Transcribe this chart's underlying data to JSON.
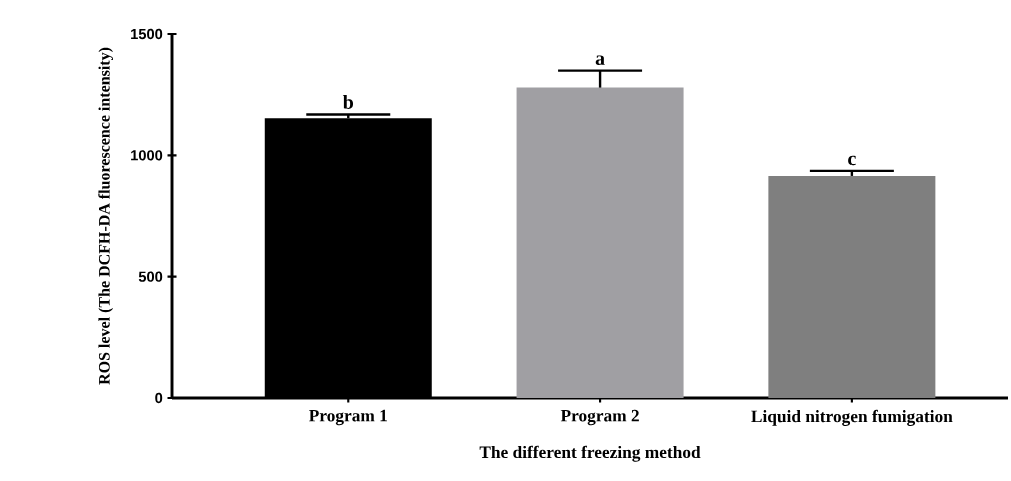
{
  "chart_data": {
    "type": "bar",
    "xlabel": "The different freezing method",
    "ylabel": "ROS level (The DCFH-DA fluorescence intensity)",
    "categories": [
      "Program 1",
      "Program 2",
      "Liquid nitrogen fumigation"
    ],
    "values": [
      1153,
      1279,
      915
    ],
    "errors": [
      [
        1153,
        1168
      ],
      [
        1279,
        1349
      ],
      [
        915,
        936
      ]
    ],
    "colors": [
      "#000000",
      "#a09fa3",
      "#7f7f7f"
    ],
    "ylim": [
      0,
      1500
    ],
    "yticks": [
      0,
      500,
      1000,
      1500
    ],
    "grid": false,
    "annotations": [
      "b",
      "a",
      "c"
    ]
  }
}
